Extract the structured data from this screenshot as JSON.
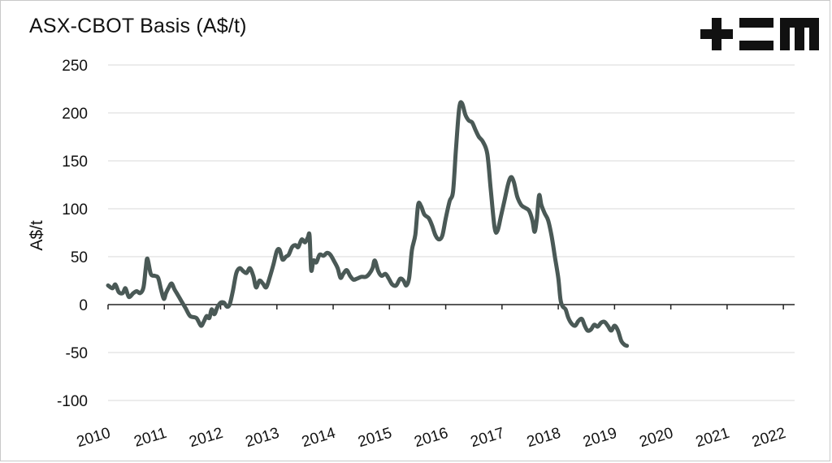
{
  "chart_data": {
    "type": "line",
    "title": "ASX-CBOT Basis (A$/t)",
    "ylabel": "A$/t",
    "xlabel": "",
    "ylim": [
      -100,
      250
    ],
    "yticks": [
      250,
      200,
      150,
      100,
      50,
      0,
      -50,
      -100
    ],
    "xlim": [
      2010.0,
      2022.2
    ],
    "xticks": [
      "2010",
      "2011",
      "2012",
      "2013",
      "2014",
      "2015",
      "2016",
      "2017",
      "2018",
      "2019",
      "2020",
      "2021",
      "2022"
    ],
    "grid": true,
    "legend": "none",
    "line_color": "#4a5956",
    "series": [
      {
        "values": [
          [
            2010.0,
            20
          ],
          [
            2010.08,
            17
          ],
          [
            2010.13,
            21
          ],
          [
            2010.19,
            13
          ],
          [
            2010.26,
            12
          ],
          [
            2010.31,
            17
          ],
          [
            2010.37,
            8
          ],
          [
            2010.45,
            12
          ],
          [
            2010.51,
            14
          ],
          [
            2010.57,
            12
          ],
          [
            2010.63,
            18
          ],
          [
            2010.67,
            38
          ],
          [
            2010.7,
            48
          ],
          [
            2010.76,
            32
          ],
          [
            2010.83,
            30
          ],
          [
            2010.89,
            28
          ],
          [
            2010.94,
            16
          ],
          [
            2010.99,
            6
          ],
          [
            2011.03,
            12
          ],
          [
            2011.08,
            18
          ],
          [
            2011.13,
            22
          ],
          [
            2011.18,
            16
          ],
          [
            2011.24,
            10
          ],
          [
            2011.3,
            4
          ],
          [
            2011.38,
            -4
          ],
          [
            2011.46,
            -12
          ],
          [
            2011.57,
            -14
          ],
          [
            2011.65,
            -22
          ],
          [
            2011.7,
            -18
          ],
          [
            2011.75,
            -12
          ],
          [
            2011.8,
            -14
          ],
          [
            2011.84,
            -5
          ],
          [
            2011.89,
            -10
          ],
          [
            2011.94,
            -3
          ],
          [
            2012.0,
            2
          ],
          [
            2012.06,
            2
          ],
          [
            2012.11,
            -2
          ],
          [
            2012.16,
            0
          ],
          [
            2012.22,
            15
          ],
          [
            2012.28,
            33
          ],
          [
            2012.34,
            38
          ],
          [
            2012.4,
            35
          ],
          [
            2012.46,
            33
          ],
          [
            2012.52,
            38
          ],
          [
            2012.58,
            30
          ],
          [
            2012.63,
            18
          ],
          [
            2012.69,
            25
          ],
          [
            2012.75,
            22
          ],
          [
            2012.81,
            18
          ],
          [
            2012.87,
            28
          ],
          [
            2012.94,
            42
          ],
          [
            2013.0,
            56
          ],
          [
            2013.05,
            57
          ],
          [
            2013.1,
            47
          ],
          [
            2013.16,
            50
          ],
          [
            2013.21,
            52
          ],
          [
            2013.27,
            60
          ],
          [
            2013.33,
            62
          ],
          [
            2013.38,
            60
          ],
          [
            2013.44,
            68
          ],
          [
            2013.5,
            65
          ],
          [
            2013.55,
            70
          ],
          [
            2013.58,
            72
          ],
          [
            2013.61,
            36
          ],
          [
            2013.65,
            46
          ],
          [
            2013.7,
            44
          ],
          [
            2013.76,
            52
          ],
          [
            2013.83,
            51
          ],
          [
            2013.89,
            54
          ],
          [
            2013.95,
            52
          ],
          [
            2014.02,
            45
          ],
          [
            2014.08,
            38
          ],
          [
            2014.13,
            28
          ],
          [
            2014.18,
            32
          ],
          [
            2014.24,
            36
          ],
          [
            2014.3,
            30
          ],
          [
            2014.36,
            26
          ],
          [
            2014.42,
            27
          ],
          [
            2014.5,
            29
          ],
          [
            2014.58,
            29
          ],
          [
            2014.64,
            32
          ],
          [
            2014.7,
            38
          ],
          [
            2014.74,
            46
          ],
          [
            2014.8,
            35
          ],
          [
            2014.86,
            30
          ],
          [
            2014.93,
            32
          ],
          [
            2014.99,
            27
          ],
          [
            2015.05,
            21
          ],
          [
            2015.12,
            20
          ],
          [
            2015.19,
            27
          ],
          [
            2015.25,
            25
          ],
          [
            2015.3,
            20
          ],
          [
            2015.35,
            28
          ],
          [
            2015.4,
            57
          ],
          [
            2015.46,
            73
          ],
          [
            2015.51,
            104
          ],
          [
            2015.56,
            103
          ],
          [
            2015.62,
            94
          ],
          [
            2015.7,
            90
          ],
          [
            2015.76,
            82
          ],
          [
            2015.82,
            72
          ],
          [
            2015.88,
            68
          ],
          [
            2015.94,
            72
          ],
          [
            2016.0,
            90
          ],
          [
            2016.07,
            108
          ],
          [
            2016.13,
            118
          ],
          [
            2016.18,
            160
          ],
          [
            2016.24,
            205
          ],
          [
            2016.29,
            210
          ],
          [
            2016.35,
            198
          ],
          [
            2016.41,
            192
          ],
          [
            2016.47,
            190
          ],
          [
            2016.53,
            182
          ],
          [
            2016.59,
            175
          ],
          [
            2016.66,
            170
          ],
          [
            2016.74,
            157
          ],
          [
            2016.8,
            120
          ],
          [
            2016.87,
            80
          ],
          [
            2016.92,
            77
          ],
          [
            2016.98,
            92
          ],
          [
            2017.05,
            110
          ],
          [
            2017.11,
            126
          ],
          [
            2017.16,
            133
          ],
          [
            2017.21,
            128
          ],
          [
            2017.27,
            113
          ],
          [
            2017.34,
            104
          ],
          [
            2017.41,
            101
          ],
          [
            2017.48,
            98
          ],
          [
            2017.54,
            88
          ],
          [
            2017.58,
            76
          ],
          [
            2017.62,
            90
          ],
          [
            2017.66,
            114
          ],
          [
            2017.7,
            104
          ],
          [
            2017.76,
            95
          ],
          [
            2017.82,
            88
          ],
          [
            2017.88,
            72
          ],
          [
            2017.94,
            50
          ],
          [
            2018.0,
            28
          ],
          [
            2018.04,
            5
          ],
          [
            2018.08,
            -2
          ],
          [
            2018.13,
            -5
          ],
          [
            2018.18,
            -14
          ],
          [
            2018.24,
            -20
          ],
          [
            2018.3,
            -22
          ],
          [
            2018.36,
            -17
          ],
          [
            2018.42,
            -15
          ],
          [
            2018.47,
            -22
          ],
          [
            2018.52,
            -27
          ],
          [
            2018.58,
            -26
          ],
          [
            2018.64,
            -21
          ],
          [
            2018.7,
            -23
          ],
          [
            2018.76,
            -19
          ],
          [
            2018.82,
            -18
          ],
          [
            2018.88,
            -22
          ],
          [
            2018.94,
            -27
          ],
          [
            2019.0,
            -22
          ],
          [
            2019.06,
            -27
          ],
          [
            2019.12,
            -38
          ],
          [
            2019.18,
            -42
          ],
          [
            2019.22,
            -43
          ]
        ]
      }
    ]
  },
  "logo": {
    "name": "TEM logo",
    "color": "#111111"
  }
}
